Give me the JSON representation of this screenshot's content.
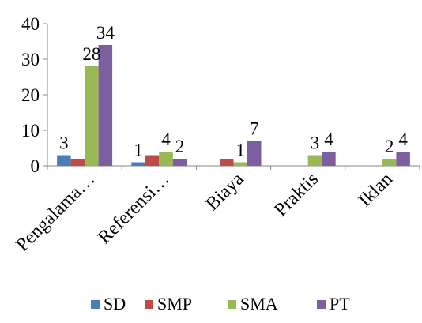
{
  "chart_data": {
    "type": "bar",
    "title": "",
    "xlabel": "",
    "ylabel": "",
    "ylim": [
      0,
      40
    ],
    "yticks": [
      0,
      10,
      20,
      30,
      40
    ],
    "grid": false,
    "legend_position": "bottom",
    "categories": [
      "Pengalama…",
      "Referensi…",
      "Biaya",
      "Praktis",
      "Iklan"
    ],
    "series": [
      {
        "name": "SD",
        "color": "#4a7ebb",
        "values": [
          3,
          1,
          0,
          0,
          0
        ],
        "labels": [
          "3",
          "1",
          "",
          "",
          ""
        ]
      },
      {
        "name": "SMP",
        "color": "#be4b48",
        "values": [
          2,
          3,
          2,
          0,
          0
        ],
        "labels": [
          "",
          "",
          "",
          "",
          ""
        ]
      },
      {
        "name": "SMA",
        "color": "#98b954",
        "values": [
          28,
          4,
          1,
          3,
          2
        ],
        "labels": [
          "28",
          "4",
          "1",
          "3",
          "2"
        ]
      },
      {
        "name": "PT",
        "color": "#7d5fa0",
        "values": [
          34,
          2,
          7,
          4,
          4
        ],
        "labels": [
          "34",
          "2",
          "7",
          "4",
          "4"
        ]
      }
    ]
  }
}
